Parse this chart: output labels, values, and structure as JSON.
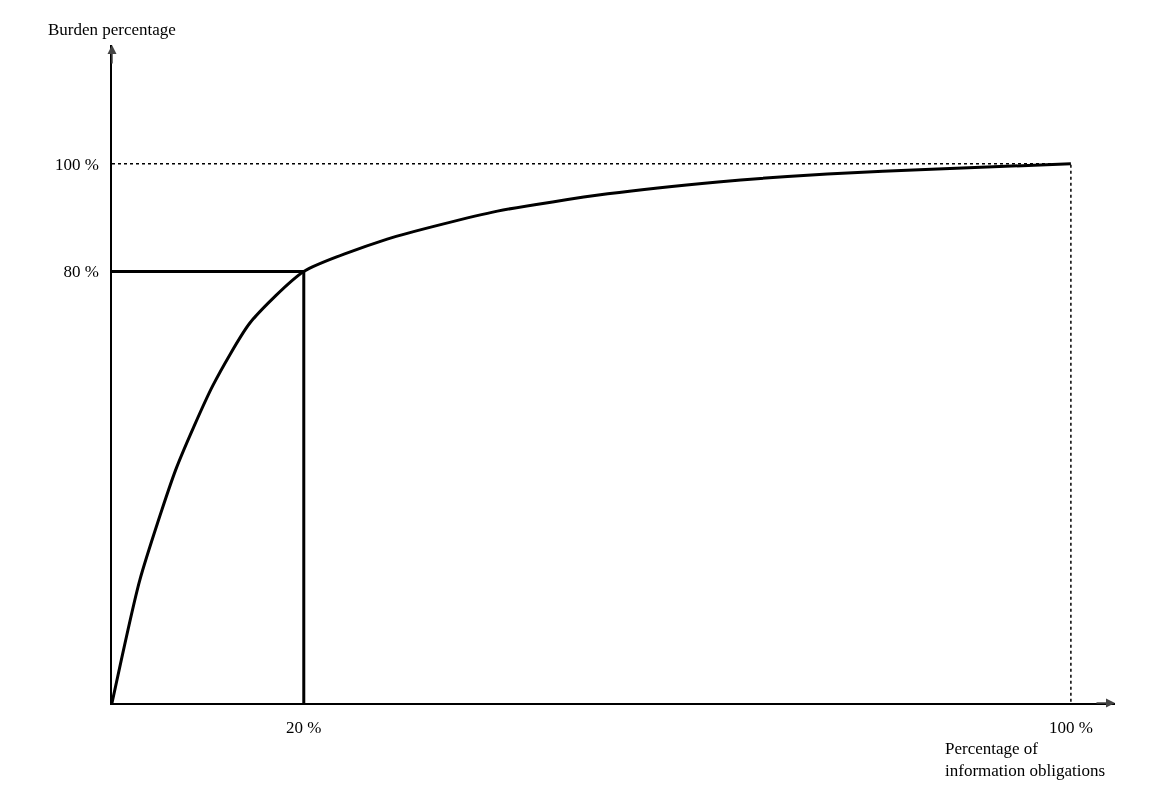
{
  "chart_data": {
    "type": "line",
    "xlabel": "Percentage of\ninformation obligations",
    "ylabel": "Burden percentage",
    "xlim": [
      0,
      104.6
    ],
    "ylim": [
      0,
      122
    ],
    "xticks": [
      {
        "value": 20,
        "label": "20 %"
      },
      {
        "value": 100,
        "label": "100 %"
      }
    ],
    "yticks": [
      {
        "value": 80,
        "label": "80 %"
      },
      {
        "value": 100,
        "label": "100 %"
      }
    ],
    "grid": false,
    "marker": "none",
    "series": [
      {
        "color": "#000000",
        "line_style": "solid",
        "x": [
          0,
          2.9,
          6.7,
          10.5,
          14.4,
          20,
          28.7,
          40.2,
          51.7,
          63.2,
          74.6,
          86.1,
          100
        ],
        "values": [
          0,
          22.8,
          43.5,
          58.8,
          70.5,
          80,
          86,
          91.2,
          94.4,
          96.6,
          98.1,
          99,
          100
        ]
      },
      {
        "color": "#000000",
        "line_style": "solid",
        "x": [
          0,
          20,
          20
        ],
        "values": [
          80,
          80,
          0
        ]
      },
      {
        "color": "#000000",
        "line_style": "dotted",
        "x": [
          0,
          100,
          100
        ],
        "values": [
          100,
          100,
          0
        ]
      }
    ]
  }
}
